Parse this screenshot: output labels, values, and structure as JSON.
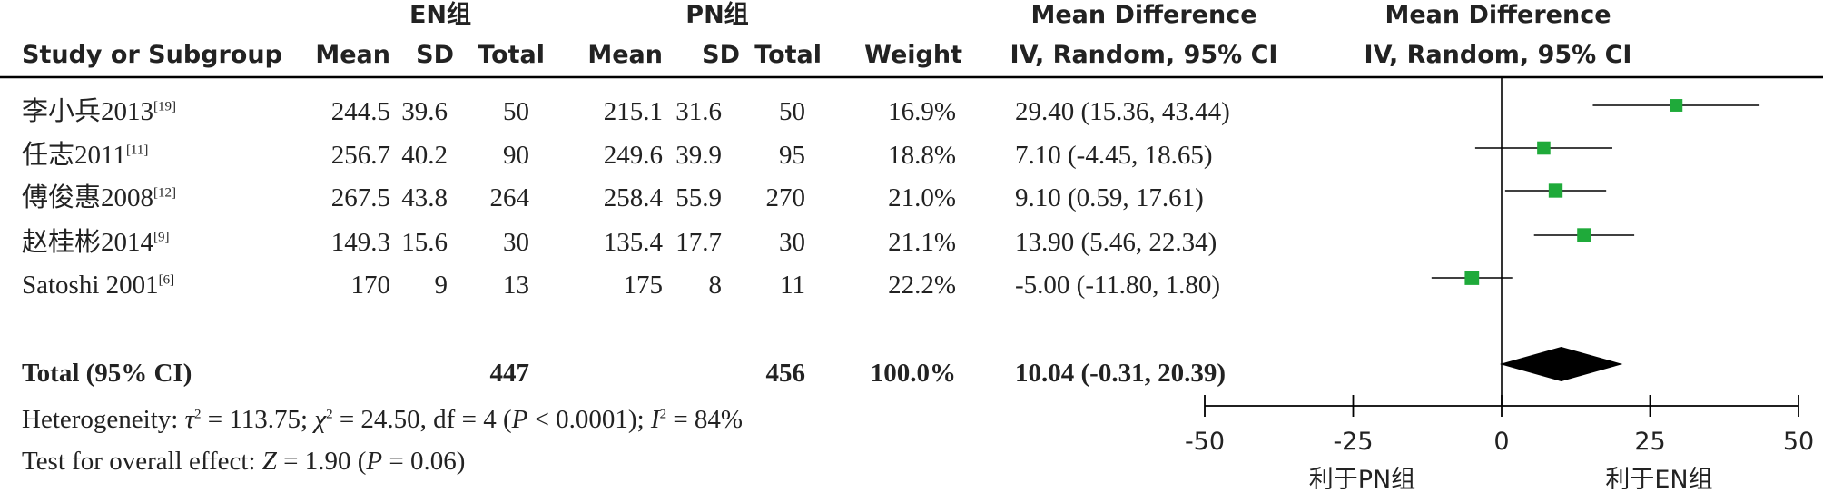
{
  "header": {
    "group_en": "EN组",
    "group_pn": "PN组",
    "study": "Study or Subgroup",
    "mean": "Mean",
    "sd": "SD",
    "total": "Total",
    "weight": "Weight",
    "md_title": "Mean Difference",
    "md_method": "IV, Random, 95% CI",
    "plot_title": "Mean Difference",
    "plot_method": "IV, Random, 95% CI"
  },
  "studies": [
    {
      "name": "李小兵2013",
      "ref": "[19]",
      "en_mean": "244.5",
      "en_sd": "39.6",
      "en_total": "50",
      "pn_mean": "215.1",
      "pn_sd": "31.6",
      "pn_total": "50",
      "weight": "16.9%",
      "md_text": "29.40 (15.36, 43.44)"
    },
    {
      "name": "任志2011",
      "ref": "[11]",
      "en_mean": "256.7",
      "en_sd": "40.2",
      "en_total": "90",
      "pn_mean": "249.6",
      "pn_sd": "39.9",
      "pn_total": "95",
      "weight": "18.8%",
      "md_text": "7.10 (-4.45, 18.65)"
    },
    {
      "name": "傅俊惠2008",
      "ref": "[12]",
      "en_mean": "267.5",
      "en_sd": "43.8",
      "en_total": "264",
      "pn_mean": "258.4",
      "pn_sd": "55.9",
      "pn_total": "270",
      "weight": "21.0%",
      "md_text": "9.10 (0.59, 17.61)"
    },
    {
      "name": "赵桂彬2014",
      "ref": "[9]",
      "en_mean": "149.3",
      "en_sd": "15.6",
      "en_total": "30",
      "pn_mean": "135.4",
      "pn_sd": "17.7",
      "pn_total": "30",
      "weight": "21.1%",
      "md_text": "13.90 (5.46, 22.34)"
    },
    {
      "name": "Satoshi 2001",
      "ref": "[6]",
      "en_mean": "170",
      "en_sd": "9",
      "en_total": "13",
      "pn_mean": "175",
      "pn_sd": "8",
      "pn_total": "11",
      "weight": "22.2%",
      "md_text": "-5.00 (-11.80, 1.80)"
    }
  ],
  "total_row": {
    "label": "Total (95% CI)",
    "en_total": "447",
    "pn_total": "456",
    "weight": "100.0%",
    "md_text": "10.04 (-0.31, 20.39)"
  },
  "heterogeneity": {
    "prefix": "Heterogeneity: ",
    "tau_sym": "τ",
    "tau_rest": " = 113.75; ",
    "chi_sym": "χ",
    "chi_rest": " = 24.50, df = 4 (",
    "p_sym": "P",
    "p_rest": " < 0.0001); ",
    "i_sym": "I",
    "i_rest": " = 84%",
    "sup2": "2"
  },
  "overall": {
    "prefix": "Test for overall effect: ",
    "z_sym": "Z",
    "z_rest": " = 1.90 (",
    "p_sym": "P",
    "p_rest": " = 0.06)"
  },
  "chart_data": {
    "type": "forest",
    "xlim": [
      -50,
      50
    ],
    "ticks": [
      -50,
      -25,
      0,
      25,
      50
    ],
    "tick_labels": [
      "-50",
      "-25",
      "0",
      "25",
      "50"
    ],
    "left_label": "利于PN组",
    "right_label": "利于EN组",
    "studies": [
      {
        "name": "李小兵2013",
        "md": 29.4,
        "lo": 15.36,
        "hi": 43.44,
        "weight": 16.9
      },
      {
        "name": "任志2011",
        "md": 7.1,
        "lo": -4.45,
        "hi": 18.65,
        "weight": 18.8
      },
      {
        "name": "傅俊惠2008",
        "md": 9.1,
        "lo": 0.59,
        "hi": 17.61,
        "weight": 21.0
      },
      {
        "name": "赵桂彬2014",
        "md": 13.9,
        "lo": 5.46,
        "hi": 22.34,
        "weight": 21.1
      },
      {
        "name": "Satoshi 2001",
        "md": -5.0,
        "lo": -11.8,
        "hi": 1.8,
        "weight": 22.2
      }
    ],
    "pooled": {
      "md": 10.04,
      "lo": -0.31,
      "hi": 20.39
    },
    "colors": {
      "marker": "#1faa3a",
      "line": "#000000",
      "diamond": "#000000"
    }
  }
}
